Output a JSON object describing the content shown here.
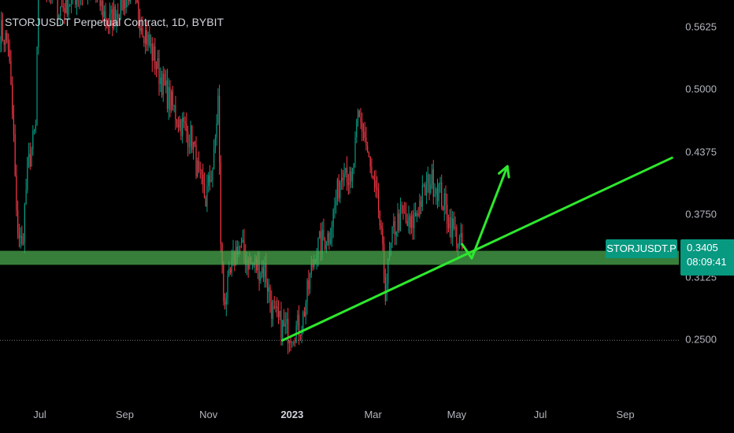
{
  "header": {
    "title": "STORJUSDT Perpetual Contract, 1D, BYBIT"
  },
  "colors": {
    "background": "#000000",
    "up": "#089981",
    "down": "#f23645",
    "support_zone": "#4caf50",
    "drawing": "#2ee82e",
    "badge": "#089981"
  },
  "price_axis": {
    "ticks": [
      "0.5625",
      "0.5000",
      "0.4375",
      "0.3750",
      "0.3125",
      "0.2500"
    ]
  },
  "time_axis": {
    "ticks": [
      "Jul",
      "Sep",
      "Nov",
      "2023",
      "Mar",
      "May",
      "Jul",
      "Sep"
    ]
  },
  "last_price": {
    "symbol": "STORJUSDT.P",
    "price": "0.3405",
    "countdown": "08:09:41"
  },
  "chart_data": {
    "type": "candlestick",
    "title": "STORJUSDT Perpetual Contract, 1D, BYBIT",
    "y_ticks": [
      0.5625,
      0.5,
      0.4375,
      0.375,
      0.3125,
      0.25
    ],
    "x_ticks": [
      "Jul",
      "Sep",
      "Nov",
      "2023",
      "Mar",
      "May",
      "Jul",
      "Sep"
    ],
    "ylim": [
      0.2,
      0.6
    ],
    "x_range": [
      "2022-06-02",
      "2023-10-10"
    ],
    "grid": false,
    "last_price": 0.3405,
    "path": [
      [
        "2022-06-02",
        0.56
      ],
      [
        "2022-06-08",
        0.545
      ],
      [
        "2022-06-12",
        0.45
      ],
      [
        "2022-06-14",
        0.37
      ],
      [
        "2022-06-18",
        0.34
      ],
      [
        "2022-06-22",
        0.42
      ],
      [
        "2022-06-28",
        0.46
      ],
      [
        "2022-06-30",
        0.62
      ],
      [
        "2022-07-15",
        0.58
      ],
      [
        "2022-08-01",
        0.6
      ],
      [
        "2022-08-10",
        0.6
      ],
      [
        "2022-08-20",
        0.565
      ],
      [
        "2022-09-05",
        0.6
      ],
      [
        "2022-09-15",
        0.56
      ],
      [
        "2022-09-20",
        0.54
      ],
      [
        "2022-09-30",
        0.5
      ],
      [
        "2022-10-10",
        0.47
      ],
      [
        "2022-10-20",
        0.45
      ],
      [
        "2022-10-25",
        0.41
      ],
      [
        "2022-10-30",
        0.39
      ],
      [
        "2022-11-05",
        0.43
      ],
      [
        "2022-11-08",
        0.49
      ],
      [
        "2022-11-10",
        0.35
      ],
      [
        "2022-11-12",
        0.29
      ],
      [
        "2022-11-15",
        0.3
      ],
      [
        "2022-11-22",
        0.345
      ],
      [
        "2022-12-02",
        0.325
      ],
      [
        "2022-12-12",
        0.32
      ],
      [
        "2022-12-18",
        0.275
      ],
      [
        "2022-12-26",
        0.26
      ],
      [
        "2023-01-01",
        0.258
      ],
      [
        "2023-01-08",
        0.265
      ],
      [
        "2023-01-18",
        0.34
      ],
      [
        "2023-01-28",
        0.355
      ],
      [
        "2023-02-08",
        0.43
      ],
      [
        "2023-02-13",
        0.4
      ],
      [
        "2023-02-18",
        0.47
      ],
      [
        "2023-02-22",
        0.46
      ],
      [
        "2023-02-28",
        0.41
      ],
      [
        "2023-03-05",
        0.38
      ],
      [
        "2023-03-10",
        0.3
      ],
      [
        "2023-03-16",
        0.36
      ],
      [
        "2023-03-22",
        0.375
      ],
      [
        "2023-03-28",
        0.36
      ],
      [
        "2023-04-05",
        0.39
      ],
      [
        "2023-04-12",
        0.41
      ],
      [
        "2023-04-18",
        0.4
      ],
      [
        "2023-04-24",
        0.375
      ],
      [
        "2023-05-01",
        0.352
      ],
      [
        "2023-05-05",
        0.3405
      ]
    ],
    "support_zone": [
      0.3245,
      0.3385
    ],
    "trendline": [
      [
        "2022-12-25",
        0.249
      ],
      [
        "2023-10-05",
        0.4315
      ]
    ],
    "annotation_arrow": [
      [
        "2023-05-05",
        0.345
      ],
      [
        "2023-05-12",
        0.331
      ],
      [
        "2023-06-07",
        0.423
      ]
    ],
    "baseline": 0.249
  }
}
